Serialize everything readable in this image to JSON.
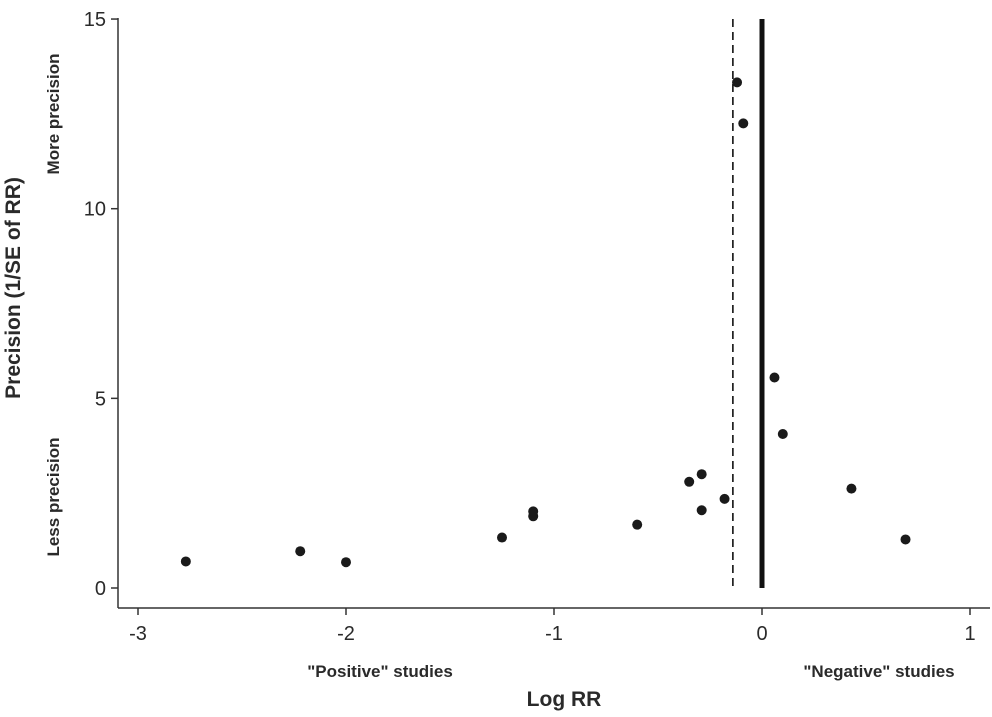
{
  "chart_data": {
    "type": "scatter",
    "xlabel": "Log RR",
    "ylabel": "Precision (1/SE of RR)",
    "xlim": [
      -3.1,
      1.1
    ],
    "ylim": [
      0,
      15
    ],
    "xticks": [
      -3,
      -2,
      -1,
      0,
      1
    ],
    "yticks": [
      0,
      5,
      10,
      15
    ],
    "x_annotations": {
      "left": "\"Positive\" studies",
      "right": "\"Negative\" studies"
    },
    "y_annotations": {
      "top": "More precision",
      "bottom": "Less precision"
    },
    "reference_lines": [
      {
        "style": "solid",
        "x": 0
      },
      {
        "style": "dashed",
        "x": -0.14
      }
    ],
    "series": [
      {
        "points": [
          {
            "x": -2.77,
            "y": 0.7
          },
          {
            "x": -2.22,
            "y": 0.97
          },
          {
            "x": -2.0,
            "y": 0.68
          },
          {
            "x": -1.25,
            "y": 1.33
          },
          {
            "x": -1.1,
            "y": 1.89
          },
          {
            "x": -1.1,
            "y": 2.02
          },
          {
            "x": -0.6,
            "y": 1.67
          },
          {
            "x": -0.35,
            "y": 2.8
          },
          {
            "x": -0.29,
            "y": 3.0
          },
          {
            "x": -0.29,
            "y": 2.05
          },
          {
            "x": -0.18,
            "y": 2.35
          },
          {
            "x": -0.12,
            "y": 13.33
          },
          {
            "x": -0.09,
            "y": 12.25
          },
          {
            "x": 0.06,
            "y": 5.55
          },
          {
            "x": 0.1,
            "y": 4.06
          },
          {
            "x": 0.43,
            "y": 2.62
          },
          {
            "x": 0.69,
            "y": 1.28
          }
        ]
      }
    ]
  }
}
